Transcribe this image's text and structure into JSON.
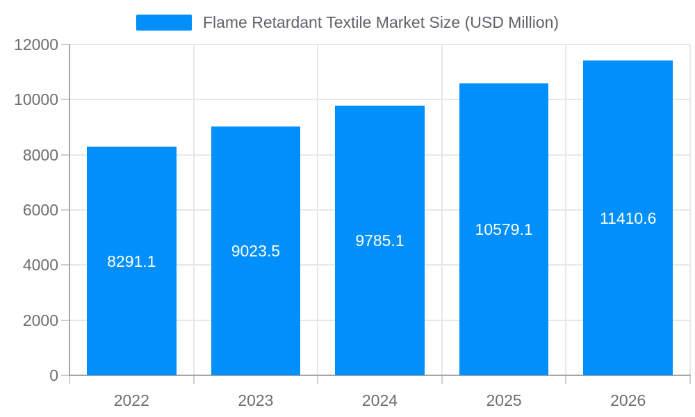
{
  "chart_data": {
    "type": "bar",
    "title": "Flame Retardant Textile Market Size (USD Million)",
    "categories": [
      "2022",
      "2023",
      "2024",
      "2025",
      "2026"
    ],
    "values": [
      8291.1,
      9023.5,
      9785.1,
      10579.1,
      11410.6
    ],
    "series": [
      {
        "name": "Flame Retardant Textile Market Size (USD Million)",
        "values": [
          8291.1,
          9023.5,
          9785.1,
          10579.1,
          11410.6
        ]
      }
    ],
    "data_labels": [
      "8291.1",
      "9023.5",
      "9785.1",
      "10579.1",
      "11410.6"
    ],
    "xlabel": "",
    "ylabel": "",
    "ylim": [
      0,
      12000
    ],
    "yticks": [
      0,
      2000,
      4000,
      6000,
      8000,
      10000,
      12000
    ],
    "grid": true,
    "legend": {
      "position": "top",
      "items": [
        {
          "label": "Flame Retardant Textile Market Size (USD Million)",
          "color": "#008FFB"
        }
      ]
    }
  },
  "colors": {
    "bar": "#008FFB",
    "grid": "#e7e7e7",
    "axis": "#a6a6a6",
    "tick": "#cfcfcf",
    "axis_label": "#6e6e6e",
    "legend_text": "#5f6368",
    "data_label": "#ffffff",
    "background": "#ffffff"
  }
}
